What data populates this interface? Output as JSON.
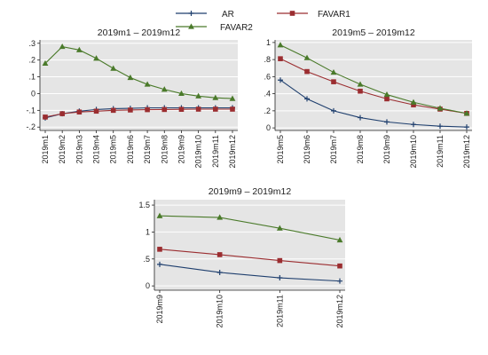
{
  "legend": [
    {
      "name": "AR",
      "color": "#1f3f6e",
      "marker": "plus"
    },
    {
      "name": "FAVAR1",
      "color": "#9b2d30",
      "marker": "square"
    },
    {
      "name": "FAVAR2",
      "color": "#4a7a2a",
      "marker": "triangle"
    }
  ],
  "colors": {
    "background": "#ffffff",
    "plot_area": "#e5e5e5",
    "grid": "#ffffff"
  },
  "chart_data": [
    {
      "type": "line",
      "title": "2019m1 – 2019m12",
      "x": [
        "2019m1",
        "2019m2",
        "2019m3",
        "2019m4",
        "2019m5",
        "2019m6",
        "2019m7",
        "2019m8",
        "2019m9",
        "2019m10",
        "2019m11",
        "2019m12"
      ],
      "ylim": [
        -0.22,
        0.32
      ],
      "yticks": [
        -0.2,
        -0.1,
        0,
        0.1,
        0.2,
        0.3
      ],
      "ytick_labels": [
        "-.2",
        "-.1",
        "0",
        ".1",
        ".2",
        ".3"
      ],
      "grid": true,
      "series": [
        {
          "name": "AR",
          "values": [
            -0.145,
            -0.12,
            -0.105,
            -0.095,
            -0.09,
            -0.088,
            -0.085,
            -0.085,
            -0.085,
            -0.085,
            -0.085,
            -0.085
          ]
        },
        {
          "name": "FAVAR1",
          "values": [
            -0.14,
            -0.12,
            -0.11,
            -0.105,
            -0.1,
            -0.098,
            -0.096,
            -0.095,
            -0.094,
            -0.093,
            -0.093,
            -0.093
          ]
        },
        {
          "name": "FAVAR2",
          "values": [
            0.18,
            0.28,
            0.26,
            0.21,
            0.15,
            0.095,
            0.055,
            0.025,
            0.0,
            -0.015,
            -0.025,
            -0.03
          ]
        }
      ]
    },
    {
      "type": "line",
      "title": "2019m5 – 2019m12",
      "x": [
        "2019m5",
        "2019m6",
        "2019m7",
        "2019m8",
        "2019m9",
        "2019m10",
        "2019m11",
        "2019m12"
      ],
      "ylim": [
        -0.03,
        1.03
      ],
      "yticks": [
        0,
        0.2,
        0.4,
        0.6,
        0.8,
        1
      ],
      "ytick_labels": [
        "0",
        ".2",
        ".4",
        ".6",
        ".8",
        "1"
      ],
      "grid": true,
      "series": [
        {
          "name": "AR",
          "values": [
            0.56,
            0.34,
            0.2,
            0.12,
            0.07,
            0.04,
            0.02,
            0.01
          ]
        },
        {
          "name": "FAVAR1",
          "values": [
            0.81,
            0.66,
            0.54,
            0.43,
            0.34,
            0.27,
            0.22,
            0.17
          ]
        },
        {
          "name": "FAVAR2",
          "values": [
            0.97,
            0.82,
            0.65,
            0.51,
            0.39,
            0.3,
            0.23,
            0.17
          ]
        }
      ]
    },
    {
      "type": "line",
      "title": "2019m9 – 2019m12",
      "x": [
        "2019m9",
        "2019m10",
        "2019m11",
        "2019m12"
      ],
      "ylim": [
        -0.08,
        1.6
      ],
      "yticks": [
        0,
        0.5,
        1,
        1.5
      ],
      "ytick_labels": [
        "0",
        ".5",
        "1",
        "1.5"
      ],
      "grid": true,
      "series": [
        {
          "name": "AR",
          "values": [
            0.4,
            0.25,
            0.15,
            0.09
          ]
        },
        {
          "name": "FAVAR1",
          "values": [
            0.68,
            0.58,
            0.47,
            0.37
          ]
        },
        {
          "name": "FAVAR2",
          "values": [
            1.3,
            1.27,
            1.07,
            0.85
          ]
        }
      ]
    }
  ]
}
